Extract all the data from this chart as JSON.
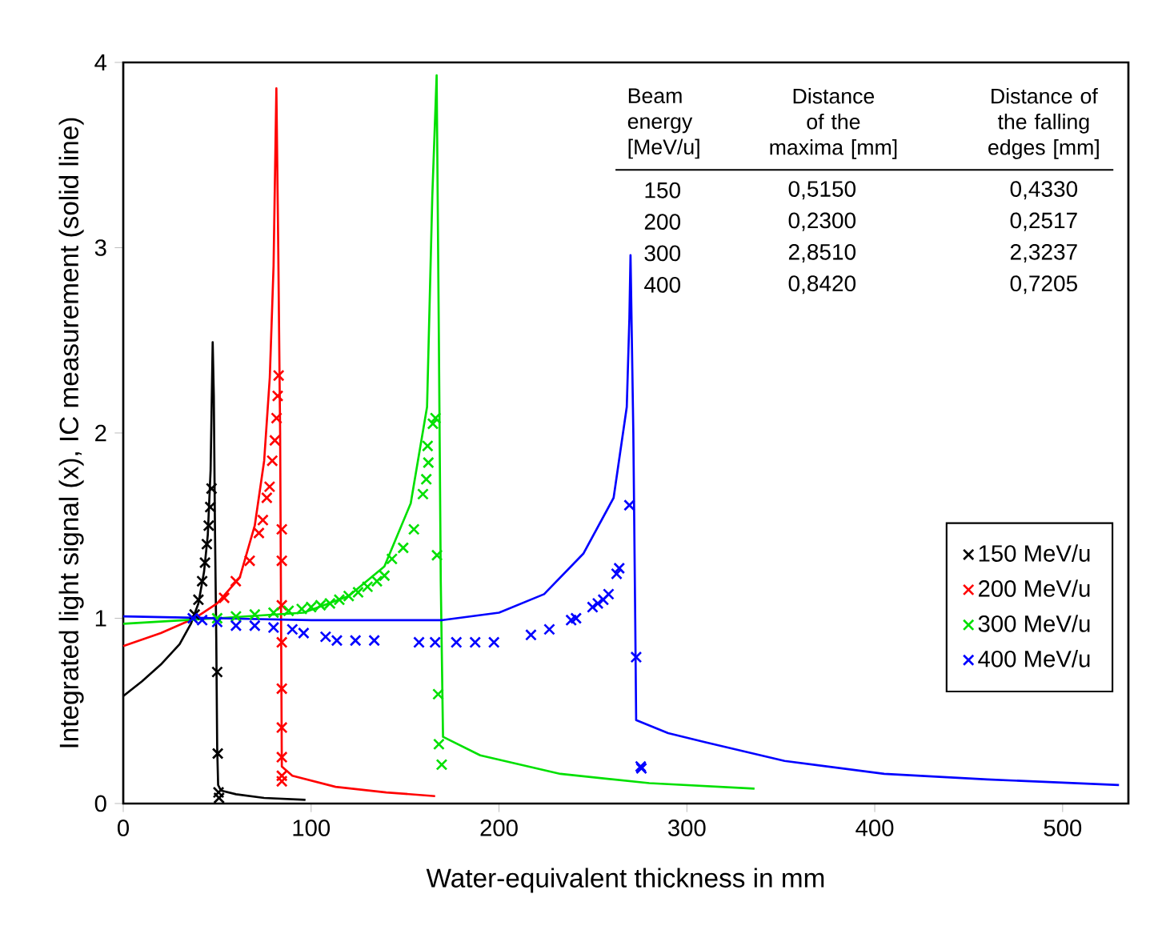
{
  "chart_data": {
    "type": "line",
    "xlabel": "Water-equivalent thickness in mm",
    "ylabel": "Integrated light signal (x), IC measurement (solid line)",
    "xlim": [
      0,
      535
    ],
    "ylim": [
      0,
      4
    ],
    "xticks": [
      0,
      100,
      200,
      300,
      400,
      500
    ],
    "yticks": [
      0,
      1,
      2,
      3,
      4
    ],
    "grid": false,
    "legend": "bottom right",
    "series": [
      {
        "color": "#000000",
        "marker": "none",
        "line_style": "solid",
        "x": [
          0,
          10,
          20,
          30,
          36,
          40,
          43,
          45,
          46.5,
          47.3,
          47.6,
          48.2,
          48.8,
          49.5,
          50,
          50.5,
          52,
          60,
          75,
          97
        ],
        "values": [
          0.58,
          0.66,
          0.75,
          0.86,
          0.97,
          1.08,
          1.25,
          1.45,
          1.8,
          2.3,
          2.49,
          2.2,
          1.5,
          0.9,
          0.3,
          0.1,
          0.07,
          0.05,
          0.03,
          0.02
        ]
      },
      {
        "color": "#ff0000",
        "marker": "none",
        "line_style": "solid",
        "x": [
          0,
          20,
          38,
          50,
          62,
          70,
          75,
          78,
          80,
          81.5,
          82.5,
          83.5,
          84,
          84.4,
          90,
          113,
          140,
          166
        ],
        "values": [
          0.85,
          0.92,
          1.0,
          1.08,
          1.22,
          1.5,
          1.85,
          2.3,
          2.9,
          3.86,
          3.0,
          2.0,
          1.0,
          0.2,
          0.15,
          0.09,
          0.06,
          0.04
        ]
      },
      {
        "color": "#00e000",
        "marker": "none",
        "line_style": "solid",
        "x": [
          0,
          50,
          96,
          120,
          139,
          153,
          161.7,
          164.5,
          166.8,
          168,
          169,
          170.2,
          190,
          232.7,
          280,
          336
        ],
        "values": [
          0.97,
          1.0,
          1.03,
          1.12,
          1.28,
          1.62,
          2.14,
          3.28,
          3.93,
          2.5,
          1.2,
          0.36,
          0.26,
          0.16,
          0.11,
          0.08
        ]
      },
      {
        "color": "#0000ff",
        "marker": "none",
        "line_style": "solid",
        "x": [
          0,
          50,
          100,
          170,
          200,
          224,
          245,
          261,
          268,
          269.4,
          270,
          271.5,
          272.5,
          273,
          290,
          310,
          352,
          405,
          460,
          530
        ],
        "values": [
          1.01,
          1.0,
          0.99,
          0.99,
          1.03,
          1.13,
          1.35,
          1.65,
          2.14,
          2.62,
          2.96,
          2.0,
          1.0,
          0.45,
          0.38,
          0.33,
          0.23,
          0.16,
          0.13,
          0.1
        ]
      },
      {
        "type": "scatter",
        "name": "150 MeV/u",
        "color": "#000000",
        "marker": "cross",
        "x": [
          38,
          40,
          42,
          43.5,
          44.5,
          45.5,
          46.3,
          47,
          50,
          50.3,
          50.7,
          51
        ],
        "values": [
          1.02,
          1.1,
          1.2,
          1.3,
          1.4,
          1.5,
          1.6,
          1.7,
          0.71,
          0.27,
          0.06,
          0.03
        ]
      },
      {
        "type": "scatter",
        "name": "200 MeV/u",
        "color": "#ff0000",
        "marker": "cross",
        "x": [
          53.7,
          59.9,
          67.3,
          72.2,
          74.3,
          76.4,
          77.9,
          79.3,
          80.7,
          81.6,
          82.2,
          82.7,
          84.4,
          84.4,
          84.4,
          84.4,
          84.4,
          84.4,
          84.4,
          84.4,
          84.4
        ],
        "values": [
          1.11,
          1.2,
          1.31,
          1.46,
          1.53,
          1.65,
          1.71,
          1.85,
          1.96,
          2.08,
          2.2,
          2.31,
          1.48,
          1.31,
          1.07,
          0.87,
          0.62,
          0.41,
          0.25,
          0.15,
          0.12
        ]
      },
      {
        "type": "scatter",
        "name": "300 MeV/u",
        "color": "#00e000",
        "marker": "cross",
        "x": [
          50,
          60,
          70,
          80,
          88,
          95,
          100,
          105,
          110,
          115,
          120,
          125,
          130,
          135,
          139,
          143,
          149,
          154.7,
          159.5,
          161.3,
          162.4,
          162,
          164.8,
          166.2,
          167,
          167.6,
          168,
          169.5
        ],
        "values": [
          1.0,
          1.01,
          1.02,
          1.03,
          1.04,
          1.05,
          1.06,
          1.07,
          1.08,
          1.1,
          1.12,
          1.14,
          1.17,
          1.2,
          1.23,
          1.32,
          1.38,
          1.48,
          1.67,
          1.75,
          1.84,
          1.93,
          2.05,
          2.08,
          1.34,
          0.59,
          0.32,
          0.21
        ]
      },
      {
        "type": "scatter",
        "name": "400 MeV/u",
        "color": "#0000ff",
        "marker": "cross",
        "x": [
          37,
          42,
          50,
          60,
          70,
          80,
          90,
          96,
          107.7,
          113.7,
          123.6,
          133.6,
          157.4,
          166,
          177.3,
          187.3,
          197.3,
          217,
          226.8,
          238.4,
          241,
          249.8,
          252.6,
          255.5,
          258.3,
          262.6,
          264,
          269.4,
          273,
          275.4,
          275.8
        ],
        "values": [
          1.0,
          0.99,
          0.98,
          0.96,
          0.96,
          0.95,
          0.94,
          0.92,
          0.9,
          0.88,
          0.88,
          0.88,
          0.87,
          0.87,
          0.87,
          0.87,
          0.87,
          0.91,
          0.94,
          0.99,
          1.0,
          1.06,
          1.08,
          1.1,
          1.13,
          1.24,
          1.27,
          1.61,
          0.79,
          0.2,
          0.19
        ]
      }
    ],
    "annotations": [
      "Beam energy [MeV/u]",
      "Distance of the maxima [mm]",
      "Distance of the falling edges [mm]",
      "150",
      "0,5150",
      "0,4330",
      "200",
      "0,2300",
      "0,2517",
      "300",
      "2,8510",
      "2,3237",
      "400",
      "0,8420",
      "0,7205"
    ]
  }
}
